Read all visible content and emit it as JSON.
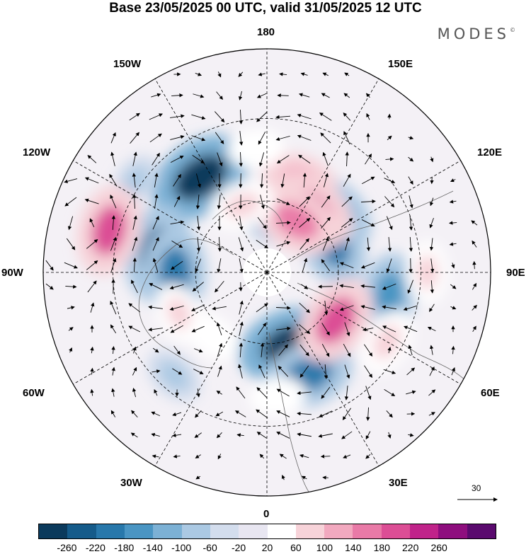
{
  "title": "Base 23/05/2025 00 UTC, valid 31/05/2025 12 UTC",
  "brand": "MODES",
  "brand_mark": "©",
  "longitude_labels": {
    "top": "180",
    "upper_left": "150W",
    "upper_right": "150E",
    "mid_upper_left": "120W",
    "mid_upper_right": "120E",
    "left": "90W",
    "right": "90E",
    "mid_lower_left": "60W",
    "mid_lower_right": "60E",
    "lower_left": "30W",
    "lower_right": "30E",
    "bottom": "0"
  },
  "reference_vector": {
    "value": "30"
  },
  "colorbar": {
    "tick_labels": [
      "-260",
      "-220",
      "-180",
      "-140",
      "-100",
      "-60",
      "-20",
      "20",
      "60",
      "100",
      "140",
      "180",
      "220",
      "260"
    ],
    "colors": [
      "#0b3a5c",
      "#155b8a",
      "#2878ab",
      "#4a95c3",
      "#7cb1d5",
      "#abc9e3",
      "#d3dded",
      "#e8e6f1",
      "#ffffff",
      "#f7d3d9",
      "#f2a9bf",
      "#e97aa7",
      "#dc4e95",
      "#c0238a",
      "#8e0e7e",
      "#5a0a6e"
    ]
  },
  "map": {
    "projection": "north polar stereographic",
    "negative_centers": [
      {
        "lon": -145,
        "lat": 43,
        "value": -260
      },
      {
        "lon": -100,
        "lat": 45,
        "value": -220
      },
      {
        "lon": -90,
        "lat": 52,
        "value": -200
      },
      {
        "lon": 165,
        "lat": 65,
        "value": -180
      },
      {
        "lon": 130,
        "lat": 52,
        "value": -160
      },
      {
        "lon": 115,
        "lat": 60,
        "value": -200
      },
      {
        "lon": 80,
        "lat": 40,
        "value": -160
      },
      {
        "lon": 18,
        "lat": 58,
        "value": -260
      },
      {
        "lon": 22,
        "lat": 45,
        "value": -200
      },
      {
        "lon": -42,
        "lat": 35,
        "value": -80
      },
      {
        "lon": -125,
        "lat": 28,
        "value": -60
      }
    ],
    "positive_centers": [
      {
        "lon": -105,
        "lat": 27,
        "value": 200
      },
      {
        "lon": 160,
        "lat": 50,
        "value": 140
      },
      {
        "lon": 145,
        "lat": 58,
        "value": 200
      },
      {
        "lon": 150,
        "lat": 65,
        "value": 180
      },
      {
        "lon": 55,
        "lat": 55,
        "value": 200
      },
      {
        "lon": 90,
        "lat": 28,
        "value": 80
      },
      {
        "lon": -65,
        "lat": 50,
        "value": 80
      },
      {
        "lon": -40,
        "lat": 55,
        "value": 60
      },
      {
        "lon": 5,
        "lat": 40,
        "value": 60
      },
      {
        "lon": 60,
        "lat": 35,
        "value": 100
      },
      {
        "lon": -160,
        "lat": 60,
        "value": 100
      },
      {
        "lon": -175,
        "lat": 40,
        "value": 60
      }
    ]
  }
}
